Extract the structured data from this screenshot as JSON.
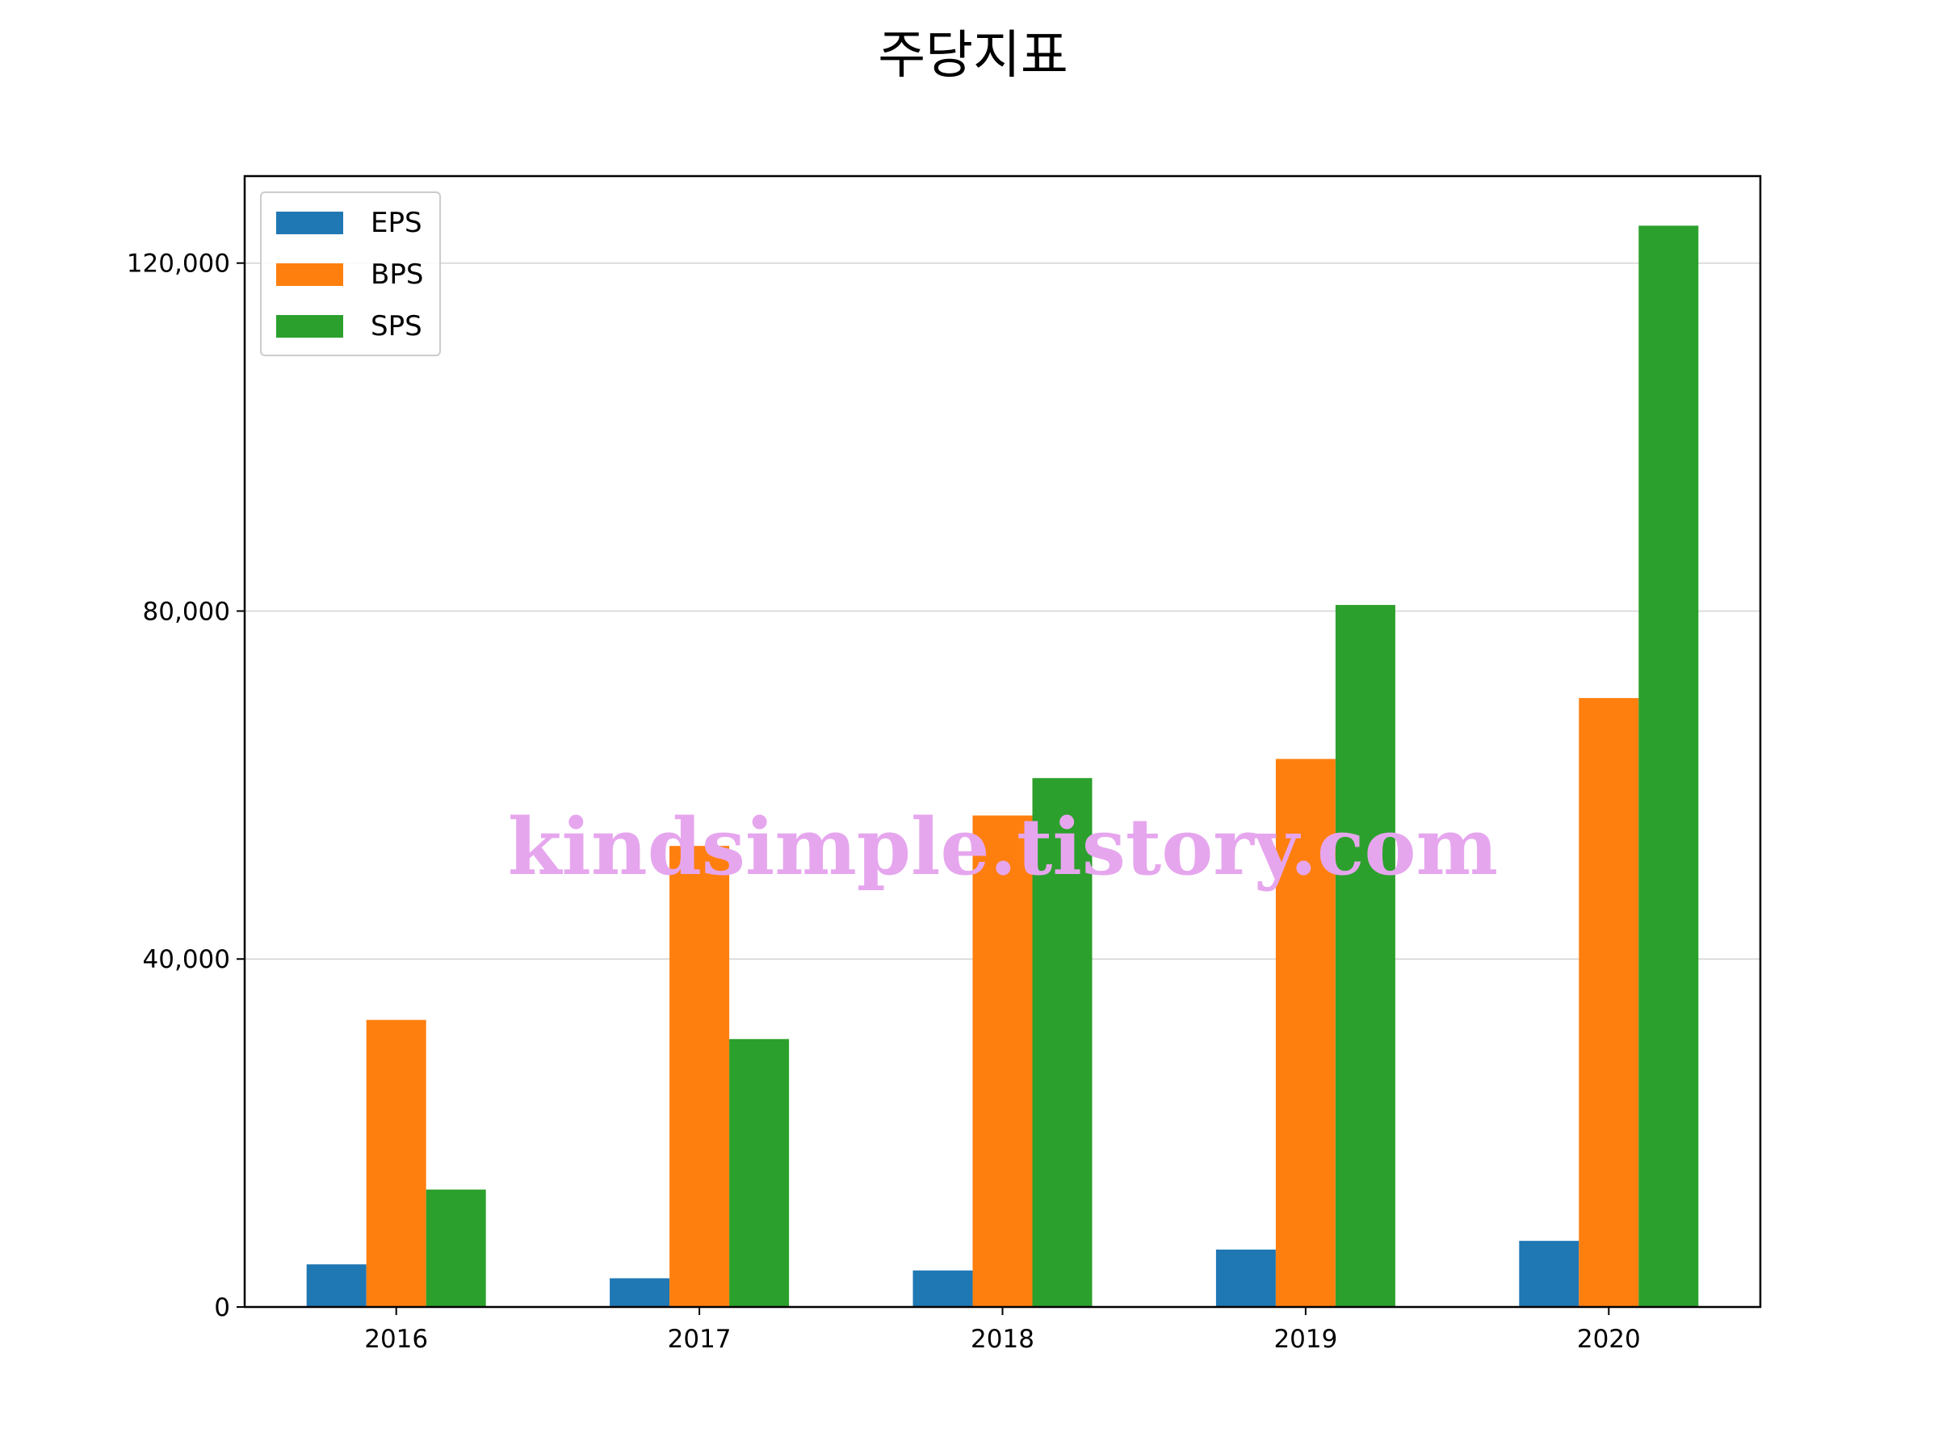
{
  "chart_data": {
    "type": "bar",
    "title": "주당지표",
    "xlabel": "",
    "ylabel": "",
    "categories": [
      "2016",
      "2017",
      "2018",
      "2019",
      "2020"
    ],
    "series": [
      {
        "name": "EPS",
        "color": "#1f77b4",
        "values": [
          4900,
          3300,
          4200,
          6600,
          7600
        ]
      },
      {
        "name": "BPS",
        "color": "#ff7f0e",
        "values": [
          33000,
          53000,
          56500,
          63000,
          70000
        ]
      },
      {
        "name": "SPS",
        "color": "#2ca02c",
        "values": [
          13500,
          30800,
          60800,
          80700,
          124300
        ]
      }
    ],
    "ylim": [
      0,
      130000
    ],
    "yticks": [
      {
        "value": 0,
        "label": "0"
      },
      {
        "value": 40000,
        "label": "40,000"
      },
      {
        "value": 80000,
        "label": "80,000"
      },
      {
        "value": 120000,
        "label": "120,000"
      }
    ],
    "grid": "horizontal",
    "legend_position": "top-left",
    "watermark": "kindsimple.tistory.com"
  }
}
